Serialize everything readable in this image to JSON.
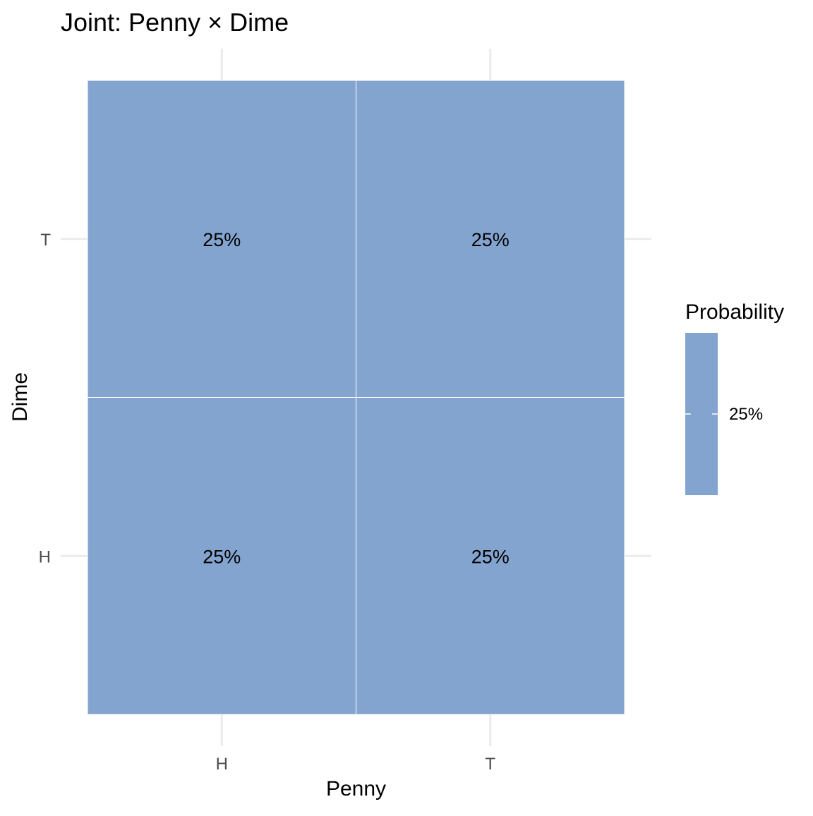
{
  "chart_data": {
    "type": "heatmap",
    "title": "Joint: Penny × Dime",
    "xlabel": "Penny",
    "ylabel": "Dime",
    "x_categories": [
      "H",
      "T"
    ],
    "y_categories": [
      "H",
      "T"
    ],
    "cells": [
      {
        "x": "H",
        "y": "H",
        "value": 0.25,
        "label": "25%"
      },
      {
        "x": "T",
        "y": "H",
        "value": 0.25,
        "label": "25%"
      },
      {
        "x": "H",
        "y": "T",
        "value": 0.25,
        "label": "25%"
      },
      {
        "x": "T",
        "y": "T",
        "value": 0.25,
        "label": "25%"
      }
    ],
    "fill_color": "#84a4d0",
    "grid_color": "#ebebeb",
    "cell_border_color": "#ffffff",
    "grid": true,
    "legend": {
      "title": "Probability",
      "placement": "right",
      "ticks": [
        {
          "value": 0.25,
          "label": "25%"
        }
      ]
    }
  }
}
